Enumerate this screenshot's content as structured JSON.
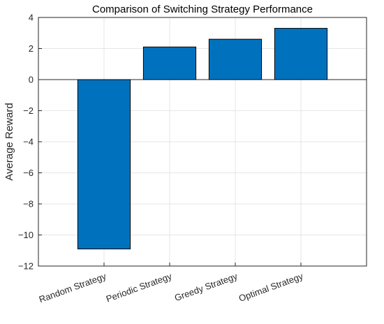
{
  "chart_data": {
    "type": "bar",
    "title": "Comparison of Switching Strategy Performance",
    "xlabel": "",
    "ylabel": "Average Reward",
    "categories": [
      "Random Strategy",
      "Periodic Strategy",
      "Greedy Strategy",
      "Optimal Strategy"
    ],
    "values": [
      -10.9,
      2.1,
      2.6,
      3.3
    ],
    "ylim": [
      -12,
      4
    ],
    "yticks": [
      -12,
      -10,
      -8,
      -6,
      -4,
      -2,
      0,
      2,
      4
    ],
    "ytick_labels": [
      "−12",
      "−10",
      "−8",
      "−6",
      "−4",
      "−2",
      "0",
      "2",
      "4"
    ],
    "grid": true,
    "bar_color": "#0072BD"
  }
}
